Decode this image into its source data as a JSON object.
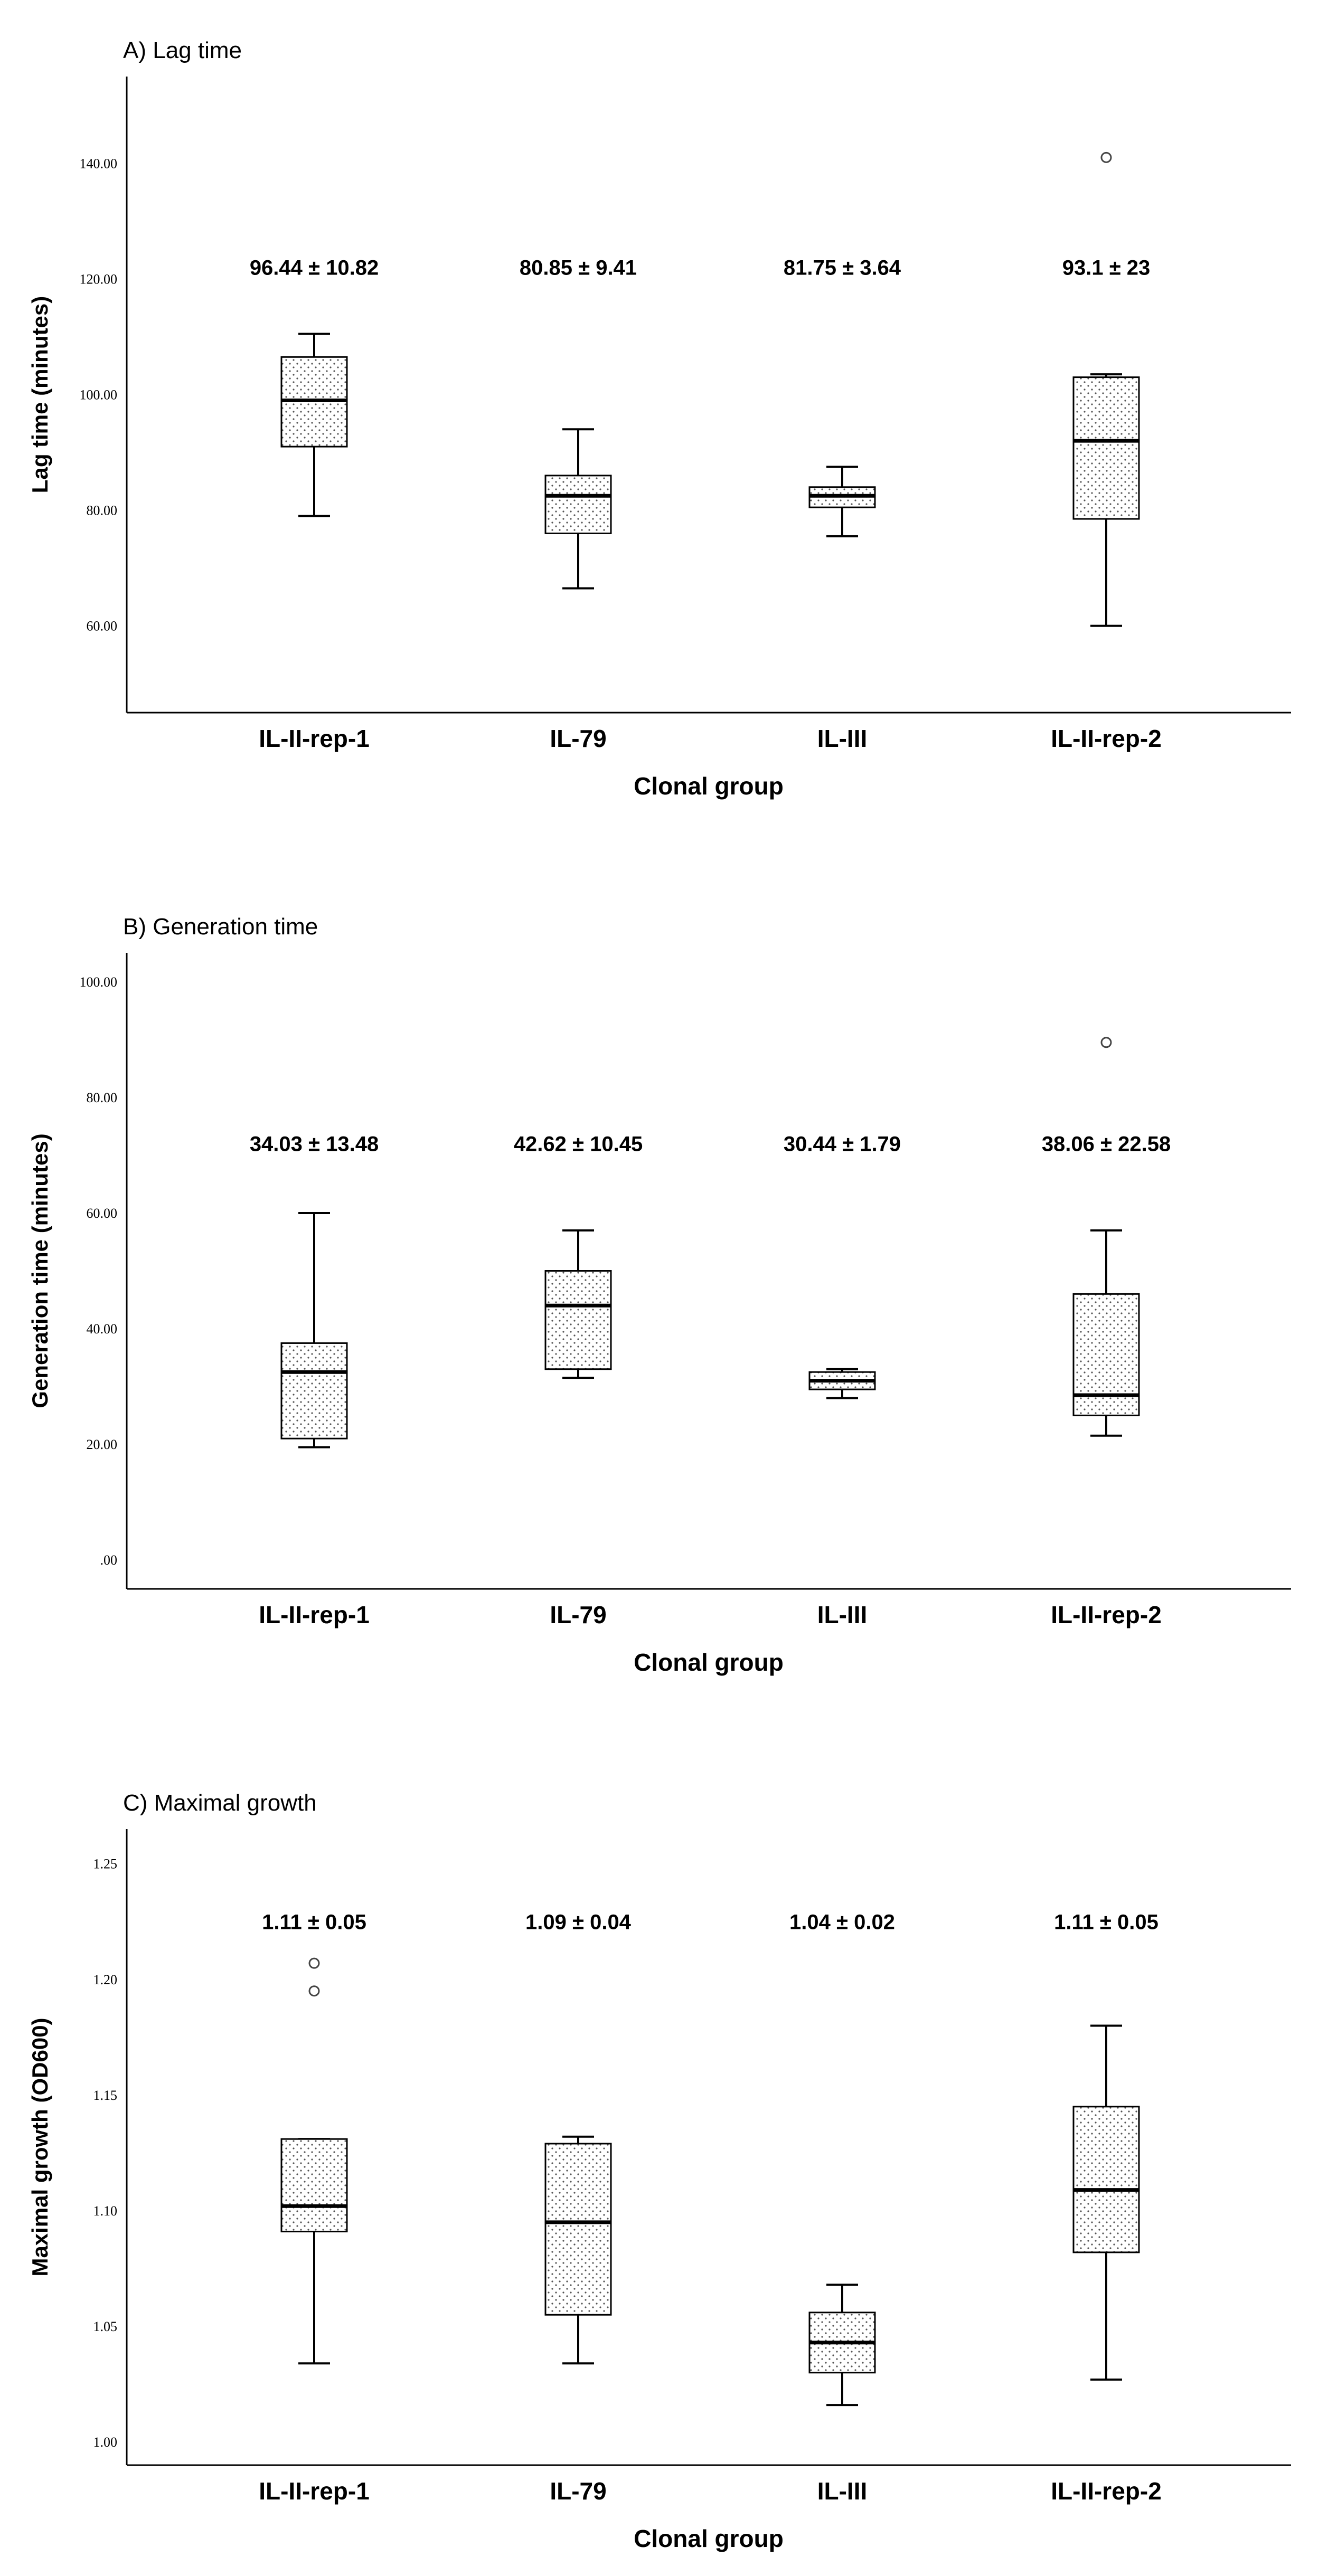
{
  "chart_data": [
    {
      "type": "boxplot",
      "title": "A) Lag time",
      "xlabel": "Clonal group",
      "ylabel": "Lag time (minutes)",
      "ylim": [
        45,
        155
      ],
      "ticks": [
        60,
        80,
        100,
        120,
        140
      ],
      "tick_labels": [
        "60.00",
        "80.00",
        "100.00",
        "120.00",
        "140.00"
      ],
      "categories": [
        "IL-II-rep-1",
        "IL-79",
        "IL-III",
        "IL-II-rep-2"
      ],
      "boxes": [
        {
          "min": 79,
          "q1": 91,
          "median": 99,
          "q3": 106.5,
          "max": 110.5,
          "outliers": []
        },
        {
          "min": 66.5,
          "q1": 76,
          "median": 82.5,
          "q3": 86,
          "max": 94,
          "outliers": []
        },
        {
          "min": 75.5,
          "q1": 80.5,
          "median": 82.5,
          "q3": 84,
          "max": 87.5,
          "outliers": []
        },
        {
          "min": 60,
          "q1": 78.5,
          "median": 92,
          "q3": 103,
          "max": 103.5,
          "outliers": [
            141
          ]
        }
      ],
      "annotations": [
        "96.44 ± 10.82",
        "80.85 ± 9.41",
        "81.75 ± 3.64",
        "93.1 ± 23"
      ],
      "annotation_level": 122
    },
    {
      "type": "boxplot",
      "title": "B) Generation time",
      "xlabel": "Clonal group",
      "ylabel": "Generation time (minutes)",
      "ylim": [
        -5,
        105
      ],
      "ticks": [
        0,
        20,
        40,
        60,
        80,
        100
      ],
      "tick_labels": [
        ".00",
        "20.00",
        "40.00",
        "60.00",
        "80.00",
        "100.00"
      ],
      "categories": [
        "IL-II-rep-1",
        "IL-79",
        "IL-III",
        "IL-II-rep-2"
      ],
      "boxes": [
        {
          "min": 19.5,
          "q1": 21,
          "median": 32.5,
          "q3": 37.5,
          "max": 60,
          "outliers": []
        },
        {
          "min": 31.5,
          "q1": 33,
          "median": 44,
          "q3": 50,
          "max": 57,
          "outliers": []
        },
        {
          "min": 28,
          "q1": 29.5,
          "median": 31,
          "q3": 32.5,
          "max": 33,
          "outliers": []
        },
        {
          "min": 21.5,
          "q1": 25,
          "median": 28.5,
          "q3": 46,
          "max": 57,
          "outliers": [
            89.5
          ]
        }
      ],
      "annotations": [
        "34.03 ± 13.48",
        "42.62 ± 10.45",
        "30.44 ± 1.79",
        "38.06 ± 22.58"
      ],
      "annotation_level": 72
    },
    {
      "type": "boxplot",
      "title": "C) Maximal growth",
      "xlabel": "Clonal group",
      "ylabel": "Maximal growth (OD600)",
      "ylim": [
        0.99,
        1.265
      ],
      "ticks": [
        1.0,
        1.05,
        1.1,
        1.15,
        1.2,
        1.25
      ],
      "tick_labels": [
        "1.00",
        "1.05",
        "1.10",
        "1.15",
        "1.20",
        "1.25"
      ],
      "categories": [
        "IL-II-rep-1",
        "IL-79",
        "IL-III",
        "IL-II-rep-2"
      ],
      "boxes": [
        {
          "min": 1.034,
          "q1": 1.091,
          "median": 1.102,
          "q3": 1.131,
          "max": 1.131,
          "outliers": [
            1.195,
            1.207
          ]
        },
        {
          "min": 1.034,
          "q1": 1.055,
          "median": 1.095,
          "q3": 1.129,
          "max": 1.132,
          "outliers": []
        },
        {
          "min": 1.016,
          "q1": 1.03,
          "median": 1.043,
          "q3": 1.056,
          "max": 1.068,
          "outliers": []
        },
        {
          "min": 1.027,
          "q1": 1.082,
          "median": 1.109,
          "q3": 1.145,
          "max": 1.18,
          "outliers": []
        }
      ],
      "annotations": [
        "1.11 ± 0.05",
        "1.09 ± 0.04",
        "1.04 ± 0.02",
        "1.11 ± 0.05"
      ],
      "annotation_level": 1.225
    }
  ]
}
